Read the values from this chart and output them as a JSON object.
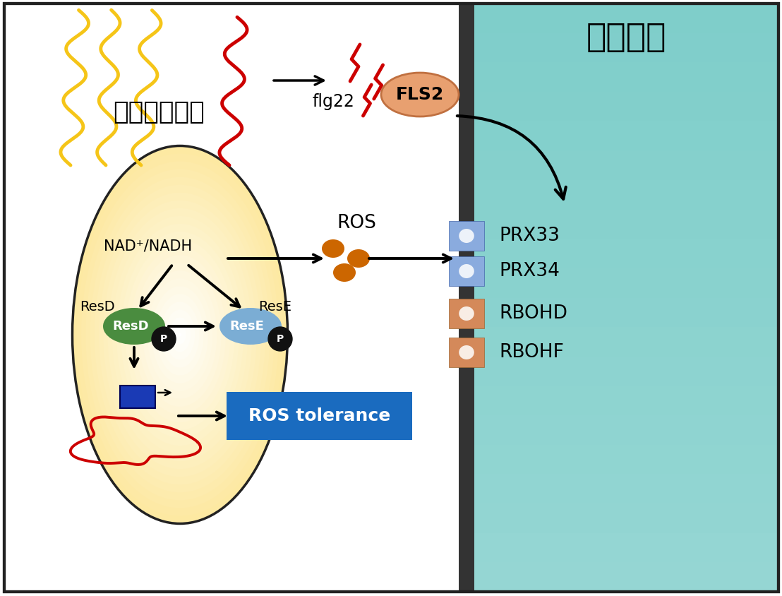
{
  "bg_color": "#ffffff",
  "right_panel_color": "#7ececa",
  "border_color": "#222222",
  "title_right": "植物细胞",
  "title_left": "益生芽孢杆菌",
  "bacterium_body_color": "#fde9a2",
  "bacterium_body_color2": "#ffeebb",
  "flagella_color_yellow": "#f5c518",
  "flagella_color_red": "#cc0000",
  "ros_dot_color": "#cc6600",
  "ros_label": "ROS",
  "nad_label": "NAD⁺/NADH",
  "resd_label": "ResD",
  "rese_label": "ResE",
  "flg22_label": "flg22",
  "fls2_label": "FLS2",
  "fls2_color": "#e8a070",
  "fls2_border": "#c07040",
  "prx_labels": [
    "PRX33",
    "PRX34",
    "RBOHD",
    "RBOHF"
  ],
  "blue_channel_color": "#8aabde",
  "orange_channel_color": "#d4895a",
  "ros_tol_label": "ROS tolerance",
  "ros_tol_bg": "#1a6bbf",
  "p_circle_color": "#111111",
  "p_label": "P",
  "resd_ellipse_color": "#4a8c3f",
  "rese_ellipse_color": "#7badd4",
  "lightning_color": "#cc0000",
  "dna_color": "#cc0000",
  "gene_box_color": "#1a3ab5",
  "wall_color": "#555555",
  "wall_left_color": "#2a2a2a",
  "arrow_color": "#111111"
}
